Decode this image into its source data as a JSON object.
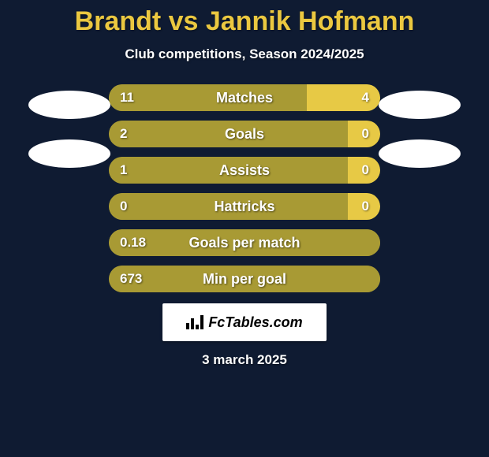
{
  "background_color": "#0f1b32",
  "title": {
    "text": "Brandt vs Jannik Hofmann",
    "color": "#ebc840",
    "fontsize": 34
  },
  "subtitle": {
    "text": "Club competitions, Season 2024/2025",
    "color": "#ffffff",
    "fontsize": 17
  },
  "ellipse_color": "#ffffff",
  "text_color": "#ffffff",
  "stat_label_color": "#ffffff",
  "bar_track_color": "#a89a34",
  "bar_left_fill_color": "#a89a34",
  "bar_right_fill_color": "#e7c945",
  "stats": [
    {
      "label": "Matches",
      "left_value": "11",
      "right_value": "4",
      "right_pct": 27
    },
    {
      "label": "Goals",
      "left_value": "2",
      "right_value": "0",
      "right_pct": 12
    },
    {
      "label": "Assists",
      "left_value": "1",
      "right_value": "0",
      "right_pct": 12
    },
    {
      "label": "Hattricks",
      "left_value": "0",
      "right_value": "0",
      "right_pct": 12
    },
    {
      "label": "Goals per match",
      "left_value": "0.18",
      "right_value": "",
      "right_pct": 0
    },
    {
      "label": "Min per goal",
      "left_value": "673",
      "right_value": "",
      "right_pct": 0
    }
  ],
  "badge": {
    "background": "#ffffff",
    "text": "FcTables.com",
    "text_color": "#000000",
    "icon_bars": [
      8,
      14,
      6,
      18
    ]
  },
  "date": {
    "text": "3 march 2025",
    "color": "#ffffff"
  }
}
